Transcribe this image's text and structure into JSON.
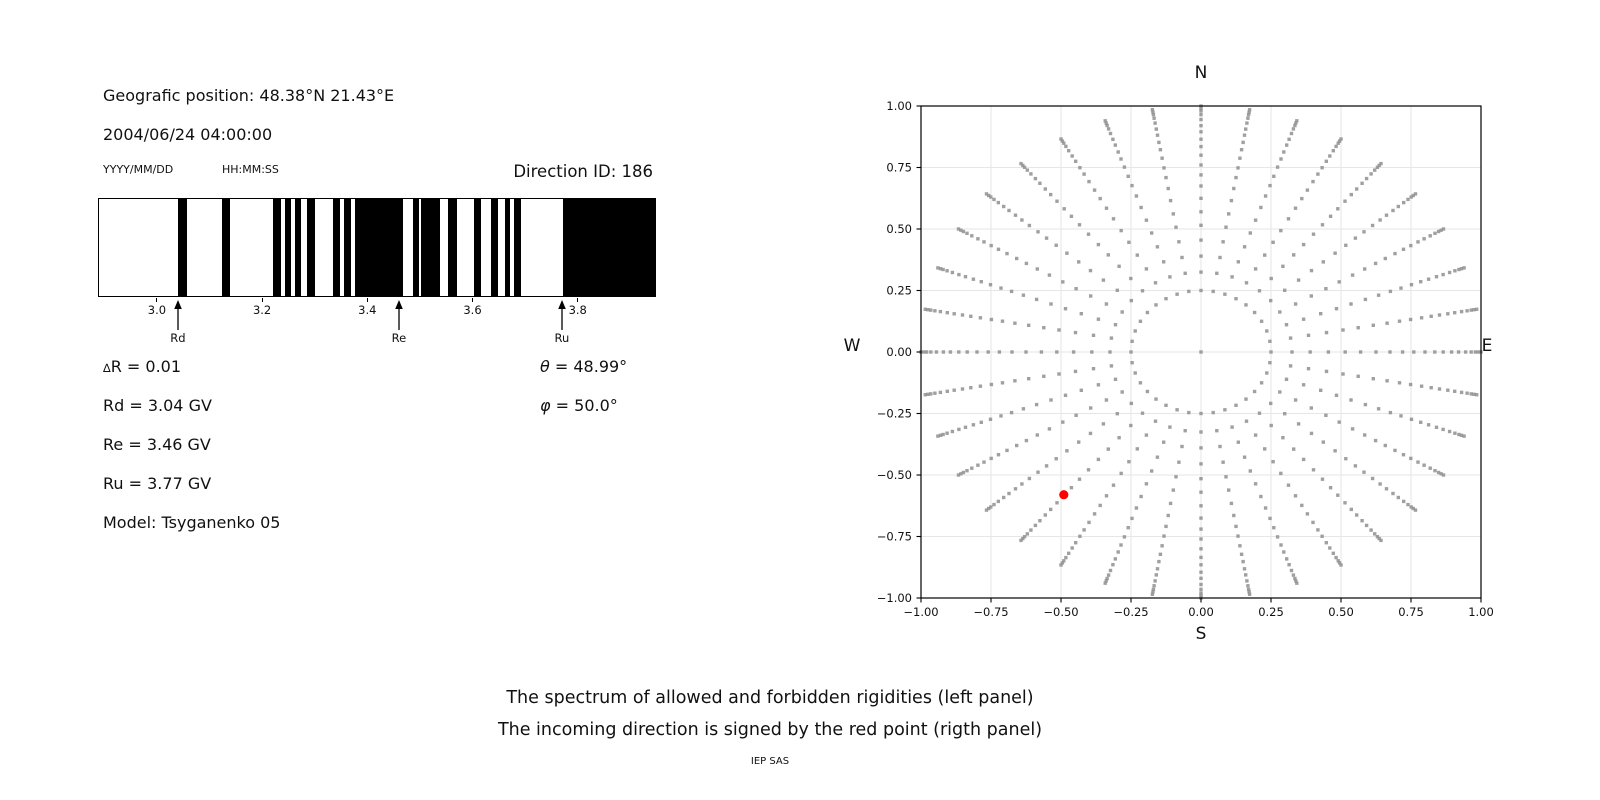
{
  "header": {
    "position": "Geografic position: 48.38°N 21.43°E",
    "datetime": "2004/06/24 04:00:00",
    "date_format_label": "YYYY/MM/DD",
    "time_format_label": "HH:MM:SS",
    "direction_id_label": "Direction ID: 186"
  },
  "left_info": {
    "delta_symbol": "∆",
    "delta_rest": "R = 0.01",
    "rd": "Rd = 3.04 GV",
    "re": "Re = 3.46 GV",
    "ru": "Ru = 3.77 GV",
    "model": "Model: Tsyganenko 05",
    "theta_symbol": "θ",
    "theta_rest": " = 48.99°",
    "phi_symbol": "φ",
    "phi_rest": " = 50.0°"
  },
  "captions": {
    "line1": "The spectrum of allowed and forbidden rigidities (left panel)",
    "line2": "The incoming direction is signed by the red point (rigth panel)",
    "credit": "IEP SAS"
  },
  "chart_data": [
    {
      "type": "bar",
      "style": "rigidity-barcode-spectrum",
      "description": "Black bands = allowed rigidities, white = forbidden",
      "xlim": [
        2.888,
        3.945
      ],
      "xticks": [
        3.0,
        3.2,
        3.4,
        3.6,
        3.8
      ],
      "xtick_labels": [
        "3.0",
        "3.2",
        "3.4",
        "3.6",
        "3.8"
      ],
      "band_color": "#000000",
      "allowed_bands": [
        [
          3.038,
          3.056
        ],
        [
          3.122,
          3.137
        ],
        [
          3.218,
          3.234
        ],
        [
          3.242,
          3.254
        ],
        [
          3.26,
          3.272
        ],
        [
          3.284,
          3.298
        ],
        [
          3.332,
          3.346
        ],
        [
          3.354,
          3.368
        ],
        [
          3.374,
          3.466
        ],
        [
          3.485,
          3.496
        ],
        [
          3.501,
          3.536
        ],
        [
          3.552,
          3.568
        ],
        [
          3.601,
          3.615
        ],
        [
          3.633,
          3.647
        ],
        [
          3.66,
          3.669
        ],
        [
          3.677,
          3.691
        ],
        [
          3.77,
          3.945
        ]
      ],
      "markers": [
        {
          "label": "Rd",
          "value": 3.04
        },
        {
          "label": "Re",
          "value": 3.46
        },
        {
          "label": "Ru",
          "value": 3.77
        }
      ]
    },
    {
      "type": "scatter",
      "style": "incoming-direction-grid",
      "compass_labels": {
        "top": "N",
        "bottom": "S",
        "left": "W",
        "right": "E"
      },
      "xlim": [
        -1.0,
        1.0
      ],
      "ylim": [
        -1.0,
        1.0
      ],
      "xticks": [
        -1.0,
        -0.75,
        -0.5,
        -0.25,
        0.0,
        0.25,
        0.5,
        0.75,
        1.0
      ],
      "yticks": [
        -1.0,
        -0.75,
        -0.5,
        -0.25,
        0.0,
        0.25,
        0.5,
        0.75,
        1.0
      ],
      "xtick_labels": [
        "−1.00",
        "−0.75",
        "−0.50",
        "−0.25",
        "0.00",
        "0.25",
        "0.50",
        "0.75",
        "1.00"
      ],
      "ytick_labels": [
        "−1.00",
        "−0.75",
        "−0.50",
        "−0.25",
        "0.00",
        "0.25",
        "0.50",
        "0.75",
        "1.00"
      ],
      "grid": true,
      "grid_color": "#e6e6e6",
      "dot_color": "#8f8f8f",
      "direction_grid": {
        "azimuth_count": 36,
        "azimuth_step_deg": 10,
        "radii": [
          0.25,
          0.325,
          0.39,
          0.455,
          0.515,
          0.57,
          0.625,
          0.675,
          0.72,
          0.76,
          0.8,
          0.835,
          0.865,
          0.895,
          0.92,
          0.945,
          0.965,
          0.98,
          0.99,
          1.0
        ],
        "center_point": [
          0.0,
          0.0
        ]
      },
      "red_point": {
        "x": -0.49,
        "y": -0.58,
        "color": "#ff0000"
      }
    }
  ]
}
